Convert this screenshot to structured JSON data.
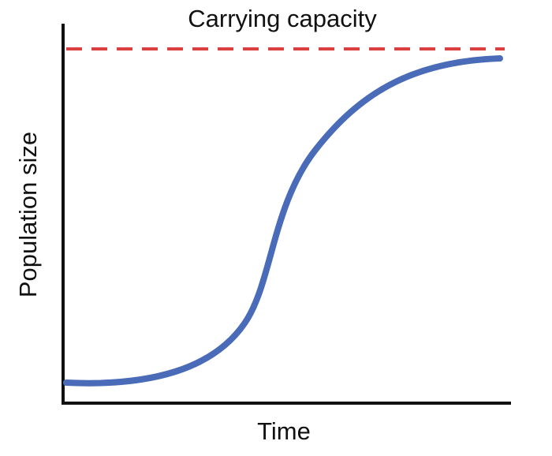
{
  "carrying_capacity_label": "Carrying capacity",
  "x_axis_label": "Time",
  "y_axis_label": "Population size"
}
